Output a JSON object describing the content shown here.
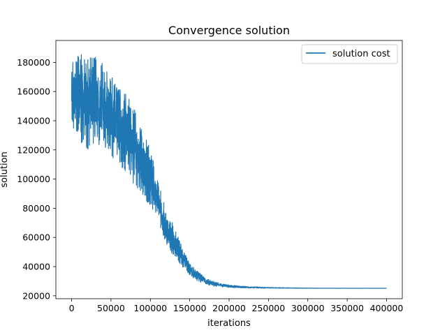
{
  "chart_data": {
    "type": "line",
    "title": "Convergence solution",
    "xlabel": "iterations",
    "ylabel": "solution",
    "xlim": [
      -20000,
      420000
    ],
    "ylim": [
      18000,
      195000
    ],
    "xticks": [
      0,
      50000,
      100000,
      150000,
      200000,
      250000,
      300000,
      350000,
      400000
    ],
    "yticks": [
      20000,
      40000,
      60000,
      80000,
      100000,
      120000,
      140000,
      160000,
      180000
    ],
    "grid": false,
    "legend_position": "top-right",
    "series": [
      {
        "name": "solution cost",
        "color": "#1f77b4",
        "envelope": {
          "x": [
            0,
            10000,
            20000,
            30000,
            40000,
            50000,
            60000,
            70000,
            80000,
            90000,
            100000,
            110000,
            120000,
            130000,
            140000,
            150000,
            160000,
            170000,
            180000,
            190000,
            200000,
            220000,
            250000,
            300000,
            350000,
            400000
          ],
          "high": [
            183000,
            187000,
            185000,
            184000,
            180000,
            172000,
            162000,
            158000,
            148000,
            132000,
            122000,
            98000,
            78000,
            68000,
            54000,
            42000,
            37000,
            32000,
            30000,
            28500,
            27500,
            26500,
            25800,
            25300,
            25200,
            25200
          ],
          "low": [
            135000,
            125000,
            120000,
            125000,
            122000,
            116000,
            110000,
            104000,
            96000,
            88000,
            82000,
            70000,
            56000,
            46000,
            40000,
            34000,
            30000,
            28000,
            26500,
            26000,
            25500,
            25300,
            25200,
            25100,
            25100,
            25100
          ]
        }
      }
    ]
  }
}
